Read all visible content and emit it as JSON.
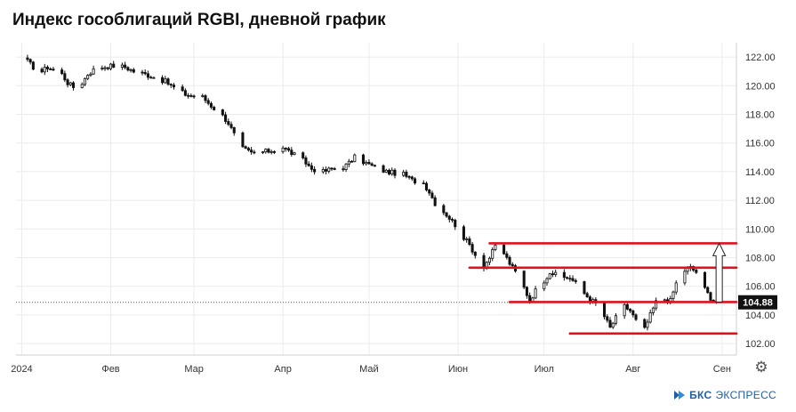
{
  "title": "Индекс гособлигаций RGBI, дневной график",
  "brand": {
    "name": "БКС",
    "suffix": "ЭКСПРЕСС",
    "logo_icon": "bks-logo-icon"
  },
  "settings_icon": "gear-icon",
  "chart_data": {
    "type": "candlestick",
    "title": "Индекс гособлигаций RGBI, дневной график",
    "x_tick_labels": [
      "2024",
      "Фев",
      "Мар",
      "Апр",
      "Май",
      "Июн",
      "Июл",
      "Авг",
      "Сен"
    ],
    "x_tick_dates": [
      "2024-01-01",
      "2024-02-01",
      "2024-03-01",
      "2024-04-01",
      "2024-05-01",
      "2024-06-01",
      "2024-07-01",
      "2024-08-01",
      "2024-09-01"
    ],
    "y_ticks": [
      "102.00",
      "104.00",
      "106.00",
      "108.00",
      "110.00",
      "112.00",
      "114.00",
      "116.00",
      "118.00",
      "120.00",
      "122.00"
    ],
    "ylim": [
      101.2,
      123.0
    ],
    "xlim": [
      "2023-12-30",
      "2024-09-06"
    ],
    "last_price": "104.88",
    "last_price_value": 104.88,
    "colors": {
      "up": "#ffffff",
      "down": "#111111",
      "wick": "#111111",
      "levels": "#e0101e",
      "grid": "#ebebeb",
      "price_tag": "#111111"
    },
    "grid": true,
    "levels": [
      {
        "value": 109.0,
        "from": "2024-06-12",
        "to": "2024-09-06"
      },
      {
        "value": 107.3,
        "from": "2024-06-05",
        "to": "2024-09-06"
      },
      {
        "value": 104.9,
        "from": "2024-06-19",
        "to": "2024-09-06"
      },
      {
        "value": 102.7,
        "from": "2024-07-10",
        "to": "2024-09-06"
      }
    ],
    "arrow": {
      "date": "2024-08-31",
      "from": 104.9,
      "to": 109.0,
      "direction": "up"
    },
    "anchors": [
      [
        "2024-01-03",
        121.7
      ],
      [
        "2024-01-05",
        121.3
      ],
      [
        "2024-01-08",
        121.0
      ],
      [
        "2024-01-10",
        121.3
      ],
      [
        "2024-01-12",
        121.1
      ],
      [
        "2024-01-15",
        120.8
      ],
      [
        "2024-01-17",
        120.2
      ],
      [
        "2024-01-19",
        119.9
      ],
      [
        "2024-01-22",
        120.2
      ],
      [
        "2024-01-24",
        120.8
      ],
      [
        "2024-01-26",
        121.1
      ],
      [
        "2024-01-29",
        121.3
      ],
      [
        "2024-02-02",
        121.4
      ],
      [
        "2024-02-06",
        121.3
      ],
      [
        "2024-02-09",
        121.0
      ],
      [
        "2024-02-13",
        120.8
      ],
      [
        "2024-02-16",
        120.6
      ],
      [
        "2024-02-20",
        120.3
      ],
      [
        "2024-02-22",
        120.0
      ],
      [
        "2024-02-27",
        119.4
      ],
      [
        "2024-02-29",
        119.3
      ],
      [
        "2024-03-04",
        119.2
      ],
      [
        "2024-03-07",
        118.6
      ],
      [
        "2024-03-11",
        117.9
      ],
      [
        "2024-03-13",
        117.4
      ],
      [
        "2024-03-15",
        116.6
      ],
      [
        "2024-03-18",
        115.6
      ],
      [
        "2024-03-21",
        115.3
      ],
      [
        "2024-03-26",
        115.4
      ],
      [
        "2024-03-29",
        115.5
      ],
      [
        "2024-04-01",
        115.7
      ],
      [
        "2024-04-04",
        115.3
      ],
      [
        "2024-04-08",
        114.8
      ],
      [
        "2024-04-11",
        114.2
      ],
      [
        "2024-04-15",
        114.0
      ],
      [
        "2024-04-18",
        114.2
      ],
      [
        "2024-04-22",
        114.3
      ],
      [
        "2024-04-24",
        114.6
      ],
      [
        "2024-04-26",
        115.0
      ],
      [
        "2024-04-29",
        114.7
      ],
      [
        "2024-05-03",
        114.3
      ],
      [
        "2024-05-07",
        114.0
      ],
      [
        "2024-05-13",
        113.8
      ],
      [
        "2024-05-16",
        113.4
      ],
      [
        "2024-05-20",
        113.2
      ],
      [
        "2024-05-22",
        112.6
      ],
      [
        "2024-05-24",
        111.8
      ],
      [
        "2024-05-28",
        111.0
      ],
      [
        "2024-05-31",
        110.3
      ],
      [
        "2024-06-03",
        109.4
      ],
      [
        "2024-06-05",
        108.9
      ],
      [
        "2024-06-07",
        108.2
      ],
      [
        "2024-06-10",
        107.4
      ],
      [
        "2024-06-12",
        108.0
      ],
      [
        "2024-06-14",
        108.8
      ],
      [
        "2024-06-17",
        108.3
      ],
      [
        "2024-06-19",
        107.6
      ],
      [
        "2024-06-21",
        107.0
      ],
      [
        "2024-06-24",
        105.9
      ],
      [
        "2024-06-26",
        105.0
      ],
      [
        "2024-06-28",
        105.7
      ],
      [
        "2024-07-01",
        106.4
      ],
      [
        "2024-07-03",
        107.0
      ],
      [
        "2024-07-05",
        106.8
      ],
      [
        "2024-07-08",
        106.6
      ],
      [
        "2024-07-10",
        106.6
      ],
      [
        "2024-07-12",
        106.2
      ],
      [
        "2024-07-15",
        105.5
      ],
      [
        "2024-07-17",
        105.1
      ],
      [
        "2024-07-19",
        104.8
      ],
      [
        "2024-07-22",
        103.9
      ],
      [
        "2024-07-24",
        103.1
      ],
      [
        "2024-07-26",
        103.8
      ],
      [
        "2024-07-29",
        104.6
      ],
      [
        "2024-07-31",
        104.3
      ],
      [
        "2024-08-02",
        103.6
      ],
      [
        "2024-08-05",
        103.0
      ],
      [
        "2024-08-07",
        104.0
      ],
      [
        "2024-08-09",
        104.9
      ],
      [
        "2024-08-12",
        105.1
      ],
      [
        "2024-08-14",
        105.0
      ],
      [
        "2024-08-16",
        106.2
      ],
      [
        "2024-08-19",
        107.1
      ],
      [
        "2024-08-21",
        107.3
      ],
      [
        "2024-08-23",
        107.0
      ],
      [
        "2024-08-26",
        105.8
      ],
      [
        "2024-08-28",
        105.2
      ],
      [
        "2024-08-30",
        104.88
      ]
    ]
  }
}
